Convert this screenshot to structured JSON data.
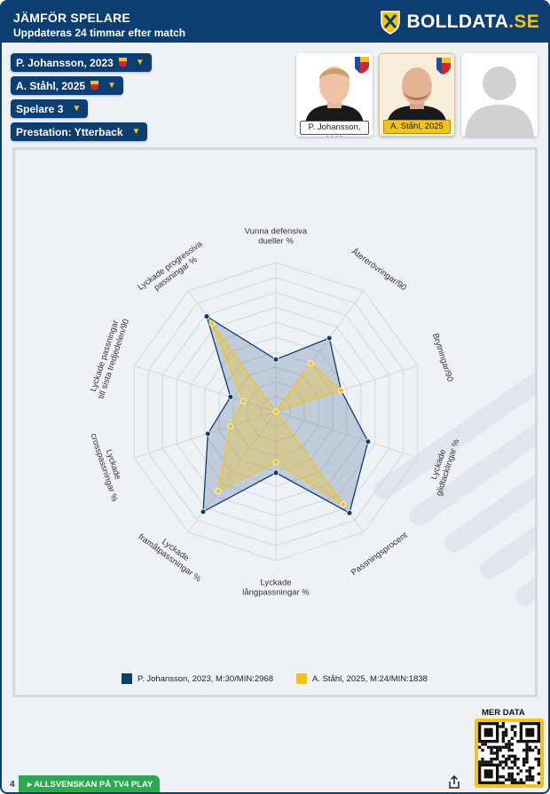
{
  "header": {
    "title": "JÄMFÖR SPELARE",
    "subtitle": "Uppdateras 24 timmar efter match",
    "brand": "BOLLDATA",
    "brand_suffix": ".SE"
  },
  "selectors": [
    {
      "label": "P. Johansson, 2023",
      "badge": true
    },
    {
      "label": "A. Ståhl, 2025",
      "badge": true
    },
    {
      "label": "Spelare 3",
      "badge": false
    },
    {
      "label": "Prestation: Ytterback",
      "badge": false
    }
  ],
  "cards": [
    {
      "name": "P. Johansson, 2023"
    },
    {
      "name": "A. Ståhl, 2025"
    },
    {
      "name": ""
    }
  ],
  "colors": {
    "navy": "#0d3e72",
    "gold": "#f3c318",
    "green": "#2fa84f",
    "series1": "#0d3e72",
    "series2": "#f3c318"
  },
  "chart_data": {
    "type": "radar",
    "axes": [
      "Vunna defensiva dueller %",
      "Återerövringar/90",
      "Brytningar/90",
      "Lyckade glidtacklingar %",
      "Passningsprocent",
      "Lyckade långpassningar %",
      "Lyckade framåtpassningar %",
      "Lyckade crosspassningar %",
      "Lyckade passningar till sista tredjedelen/90",
      "Lyckade progressiva passningar %"
    ],
    "axis_labels": [
      [
        "Vunna defensiva",
        "dueller %"
      ],
      [
        "Återerövringar/90"
      ],
      [
        "Brytningar/90"
      ],
      [
        "Lyckade",
        "glidtacklingar %"
      ],
      [
        "Passningsprocent"
      ],
      [
        "Lyckade",
        "långpassningar %"
      ],
      [
        "Lyckade",
        "framåtpassningar %"
      ],
      [
        "Lyckade",
        "crosspassningar %"
      ],
      [
        "Lyckade passningar",
        "till sista tredjedelen/90"
      ],
      [
        "Lyckade progressiva",
        "passningar %"
      ]
    ],
    "rmax": 100,
    "rings": 10,
    "series": [
      {
        "name": "P. Johansson, 2023, M:30/MIN:2968",
        "values": [
          35,
          61,
          46,
          65,
          84,
          41,
          83,
          48,
          32,
          79
        ]
      },
      {
        "name": "A. Ståhl, 2025, M:24/MIN:1838",
        "values": [
          0,
          40,
          46,
          0,
          77,
          34,
          66,
          32,
          23,
          73
        ]
      }
    ]
  },
  "footer": {
    "more_data": "MER DATA",
    "page_num": "4",
    "cta": "ALLSVENSKAN PÅ TV4 PLAY"
  }
}
